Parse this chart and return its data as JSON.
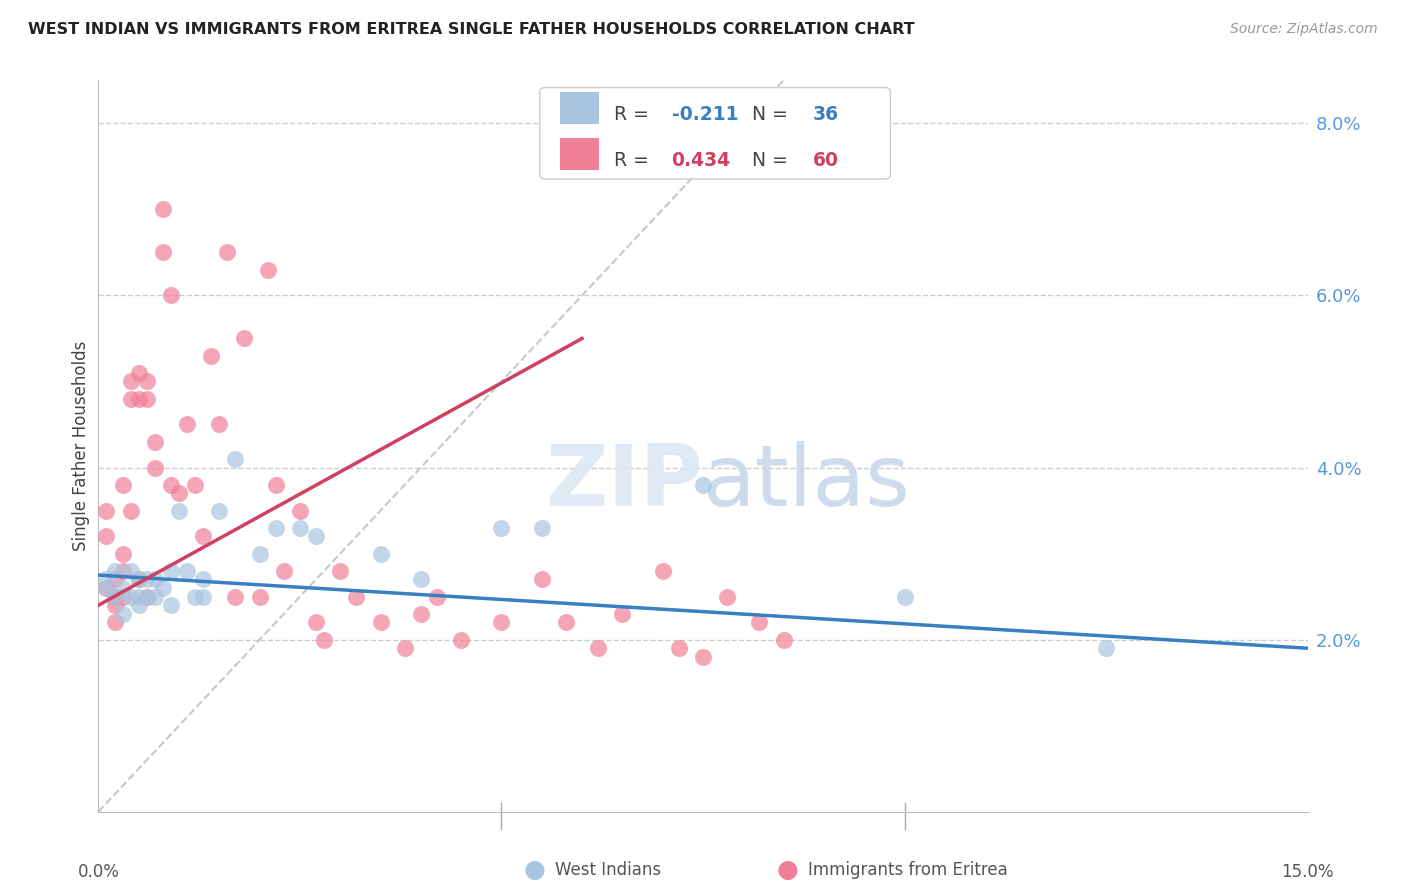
{
  "title": "WEST INDIAN VS IMMIGRANTS FROM ERITREA SINGLE FATHER HOUSEHOLDS CORRELATION CHART",
  "source": "Source: ZipAtlas.com",
  "ylabel": "Single Father Households",
  "xmin": 0.0,
  "xmax": 0.15,
  "ymin": 0.0,
  "ymax": 0.085,
  "legend1_r": "-0.211",
  "legend1_n": "36",
  "legend2_r": "0.434",
  "legend2_n": "60",
  "color_blue": "#a8c4e0",
  "color_pink": "#f08098",
  "line_blue": "#3a7fc1",
  "line_pink": "#d04060",
  "diag_color": "#c8c8c8",
  "west_indians_x": [
    0.001,
    0.001,
    0.002,
    0.002,
    0.003,
    0.003,
    0.004,
    0.004,
    0.005,
    0.005,
    0.005,
    0.006,
    0.006,
    0.007,
    0.007,
    0.008,
    0.009,
    0.009,
    0.01,
    0.011,
    0.012,
    0.013,
    0.013,
    0.015,
    0.017,
    0.02,
    0.022,
    0.025,
    0.027,
    0.035,
    0.04,
    0.05,
    0.055,
    0.075,
    0.1,
    0.125
  ],
  "west_indians_y": [
    0.027,
    0.026,
    0.025,
    0.028,
    0.026,
    0.023,
    0.025,
    0.028,
    0.025,
    0.027,
    0.024,
    0.025,
    0.027,
    0.025,
    0.027,
    0.026,
    0.024,
    0.028,
    0.035,
    0.028,
    0.025,
    0.027,
    0.025,
    0.035,
    0.041,
    0.03,
    0.033,
    0.033,
    0.032,
    0.03,
    0.027,
    0.033,
    0.033,
    0.038,
    0.025,
    0.019
  ],
  "eritrea_x": [
    0.001,
    0.001,
    0.001,
    0.002,
    0.002,
    0.002,
    0.002,
    0.003,
    0.003,
    0.003,
    0.003,
    0.004,
    0.004,
    0.004,
    0.005,
    0.005,
    0.005,
    0.006,
    0.006,
    0.006,
    0.007,
    0.007,
    0.008,
    0.008,
    0.009,
    0.009,
    0.01,
    0.011,
    0.012,
    0.013,
    0.014,
    0.015,
    0.016,
    0.017,
    0.018,
    0.02,
    0.021,
    0.022,
    0.023,
    0.025,
    0.027,
    0.028,
    0.03,
    0.032,
    0.035,
    0.038,
    0.04,
    0.042,
    0.045,
    0.05,
    0.055,
    0.058,
    0.062,
    0.065,
    0.07,
    0.072,
    0.075,
    0.078,
    0.082,
    0.085
  ],
  "eritrea_y": [
    0.026,
    0.032,
    0.035,
    0.025,
    0.027,
    0.024,
    0.022,
    0.03,
    0.028,
    0.025,
    0.038,
    0.035,
    0.05,
    0.048,
    0.027,
    0.051,
    0.048,
    0.025,
    0.048,
    0.05,
    0.04,
    0.043,
    0.065,
    0.07,
    0.06,
    0.038,
    0.037,
    0.045,
    0.038,
    0.032,
    0.053,
    0.045,
    0.065,
    0.025,
    0.055,
    0.025,
    0.063,
    0.038,
    0.028,
    0.035,
    0.022,
    0.02,
    0.028,
    0.025,
    0.022,
    0.019,
    0.023,
    0.025,
    0.02,
    0.022,
    0.027,
    0.022,
    0.019,
    0.023,
    0.028,
    0.019,
    0.018,
    0.025,
    0.022,
    0.02
  ],
  "wi_line_x": [
    0.0,
    0.15
  ],
  "wi_line_y": [
    0.0275,
    0.019
  ],
  "er_line_x": [
    0.0,
    0.06
  ],
  "er_line_y": [
    0.024,
    0.055
  ]
}
